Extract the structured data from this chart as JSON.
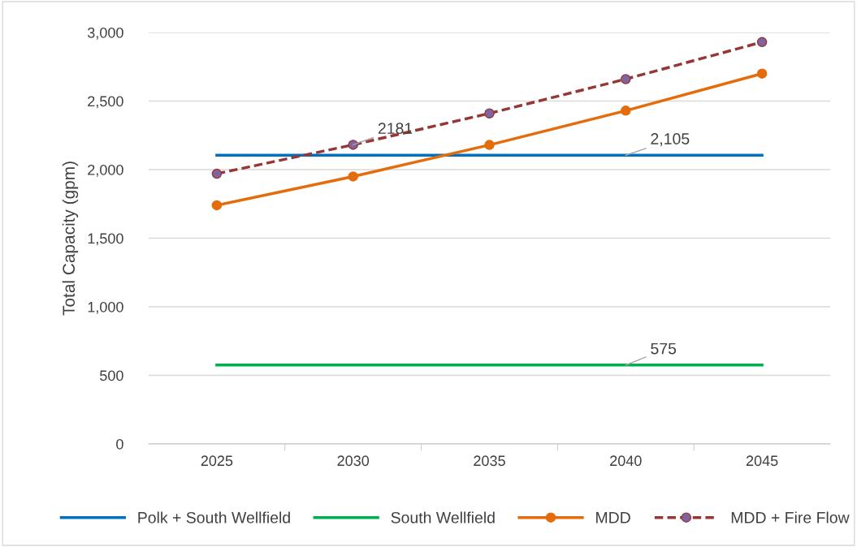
{
  "chart_data": {
    "type": "line",
    "ylabel": "Total Capacity (gpm)",
    "categories": [
      "2025",
      "2030",
      "2035",
      "2040",
      "2045"
    ],
    "series": [
      {
        "name": "Polk + South Wellfield",
        "color": "#0070c0",
        "values": [
          2105,
          2105,
          2105,
          2105,
          2105
        ],
        "marker": "none",
        "line_style": "solid"
      },
      {
        "name": "South Wellfield",
        "color": "#00b050",
        "values": [
          575,
          575,
          575,
          575,
          575
        ],
        "marker": "none",
        "line_style": "solid"
      },
      {
        "name": "MDD",
        "color": "#e46c0a",
        "values": [
          1740,
          1950,
          2180,
          2430,
          2700
        ],
        "marker": "circle",
        "line_style": "solid"
      },
      {
        "name": "MDD + Fire Flow",
        "color": "#953735",
        "values": [
          1970,
          2181,
          2410,
          2660,
          2930
        ],
        "marker": "circle",
        "line_style": "dashed"
      }
    ],
    "ylim": [
      0,
      3000
    ],
    "yticks": [
      {
        "value": 0,
        "label": "0"
      },
      {
        "value": 500,
        "label": "500"
      },
      {
        "value": 1000,
        "label": "1,000"
      },
      {
        "value": 1500,
        "label": "1,500"
      },
      {
        "value": 2000,
        "label": "2,000"
      },
      {
        "value": 2500,
        "label": "2,500"
      },
      {
        "value": 3000,
        "label": "3,000"
      }
    ],
    "annotations": [
      {
        "text": "2181",
        "x": "2030",
        "y": 2181
      },
      {
        "text": "2,105",
        "x": "2040",
        "y": 2105
      },
      {
        "text": "575",
        "x": "2040",
        "y": 575
      }
    ],
    "grid": "y",
    "legend": "bottom"
  }
}
